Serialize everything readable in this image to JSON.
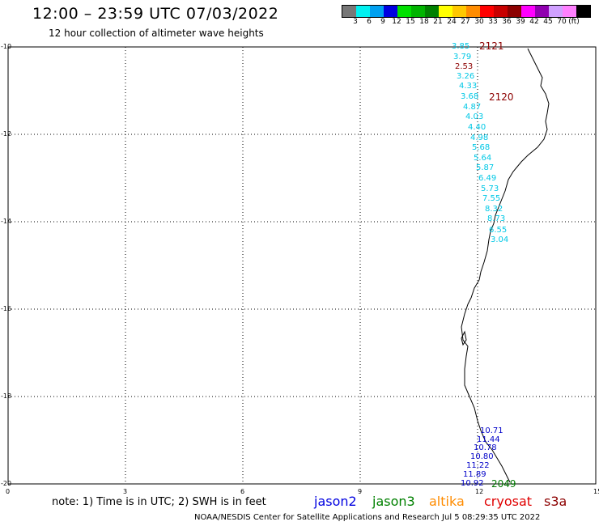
{
  "header": {
    "title": "12:00 – 23:59 UTC 07/03/2022",
    "subtitle": "12 hour collection of altimeter wave heights"
  },
  "legend": {
    "colors": [
      "#777777",
      "#00f0f0",
      "#00a0f0",
      "#0000e0",
      "#00e000",
      "#00b400",
      "#008000",
      "#ffff00",
      "#ffc800",
      "#ff8c00",
      "#ff0000",
      "#c80000",
      "#8c0000",
      "#ff00ff",
      "#9000b0",
      "#d0a0ff",
      "#ff80ff",
      "#000000"
    ],
    "labels": [
      "3",
      "6",
      "9",
      "12",
      "15",
      "18",
      "21",
      "24",
      "27",
      "30",
      "33",
      "36",
      "39",
      "42",
      "45",
      "70",
      "(ft)"
    ]
  },
  "map": {
    "y_ticks": [
      "-10",
      "-12",
      "-14",
      "-16",
      "-18",
      "-20"
    ],
    "x_ticks": [
      "0",
      "3",
      "6",
      "9",
      "12",
      "15"
    ]
  },
  "passes": [
    {
      "id": "2121",
      "color": "#8c0000"
    },
    {
      "id": "2120",
      "color": "#8c0000"
    },
    {
      "id": "2049",
      "color": "#007800"
    }
  ],
  "wave_heights_north": [
    "3.85",
    "3.79",
    "2.53",
    "3.26",
    "4.33",
    "3.68",
    "4.87",
    "4.03",
    "4.40",
    "4.98",
    "5.68",
    "5.64",
    "5.87",
    "6.49",
    "5.73",
    "7.55",
    "8.32",
    "8.73",
    "6.55",
    "3.04"
  ],
  "wave_heights_north_colors": [
    "#00c8e6",
    "#00c8e6",
    "#8c0000",
    "#00c8e6",
    "#00c8e6",
    "#00c8e6",
    "#00c8e6",
    "#00c8e6",
    "#00c8e6",
    "#00c8e6",
    "#00c8e6",
    "#00c8e6",
    "#00c8e6",
    "#00c8e6",
    "#00c8e6",
    "#00c8e6",
    "#00c8e6",
    "#00c8e6",
    "#00c8e6",
    "#00c8e6"
  ],
  "wave_heights_south": [
    "10.71",
    "11.44",
    "10.78",
    "10.80",
    "11.22",
    "11.89",
    "10.92"
  ],
  "note": "note: 1) Time is in UTC; 2) SWH is in feet",
  "satellites": [
    {
      "name": "jason2",
      "color": "#0000e0"
    },
    {
      "name": "jason3",
      "color": "#008000"
    },
    {
      "name": "altika",
      "color": "#ff8c00"
    },
    {
      "name": "cryosat",
      "color": "#e00000"
    },
    {
      "name": "s3a",
      "color": "#8c0000"
    }
  ],
  "credit": "NOAA/NESDIS Center for Satellite Applications and Research    Jul  5 08:29:35 UTC 2022"
}
